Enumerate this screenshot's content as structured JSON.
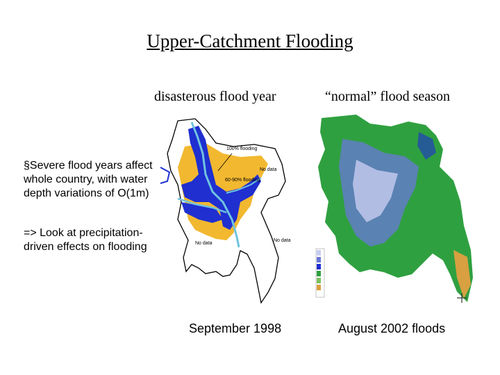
{
  "title": "Upper-Catchment Flooding",
  "left_map": {
    "heading": "disasterous flood year",
    "caption": "September 1998",
    "annotations": {
      "flood_100": "100% flooding",
      "flood_60_90": "60-90% flooding",
      "no_data_1": "No data",
      "no_data_2": "No data",
      "no_data_3": "No data"
    }
  },
  "right_map": {
    "heading": "“normal” flood season",
    "caption": "August 2002 floods"
  },
  "bullets": {
    "b1": "§Severe flood years affect whole country, with water depth variations of O(1m)",
    "b2": "=> Look at precipitation-driven effects on flooding"
  },
  "colors": {
    "deep_flood": "#1f2fd0",
    "partial_flood": "#f2b830",
    "river": "#6fc3e0",
    "land_green": "#2fa040"
  }
}
